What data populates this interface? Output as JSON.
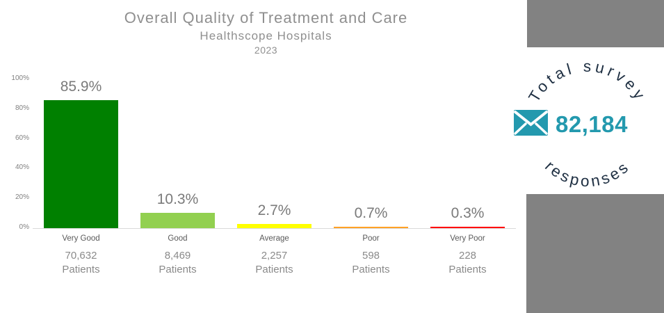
{
  "title": {
    "line1": "Overall Quality of Treatment and Care",
    "line2": "Healthscope Hospitals",
    "line3": "2023"
  },
  "chart_data": {
    "type": "bar",
    "categories": [
      "Very Good",
      "Good",
      "Average",
      "Poor",
      "Very Poor"
    ],
    "values": [
      85.9,
      10.3,
      2.7,
      0.7,
      0.3
    ],
    "value_labels": [
      "85.9%",
      "10.3%",
      "2.7%",
      "0.7%",
      "0.3%"
    ],
    "patient_counts": [
      "70,632",
      "8,469",
      "2,257",
      "598",
      "228"
    ],
    "patients_word": "Patients",
    "bar_colors": [
      "#008000",
      "#92d050",
      "#ffff00",
      "#ffa226",
      "#ff0000"
    ],
    "y_ticks": [
      "0%",
      "20%",
      "40%",
      "60%",
      "80%",
      "100%"
    ],
    "ylim": [
      0,
      100
    ],
    "grid": false,
    "legend": false,
    "title": "Overall Quality of Treatment and Care",
    "subtitle": "Healthscope Hospitals",
    "year": "2023"
  },
  "badge": {
    "arc_top": "Total survey",
    "arc_bottom": "responses",
    "value": "82,184",
    "icon": "envelope-icon",
    "teal": "#2399ae",
    "navy": "#1e2f42"
  }
}
